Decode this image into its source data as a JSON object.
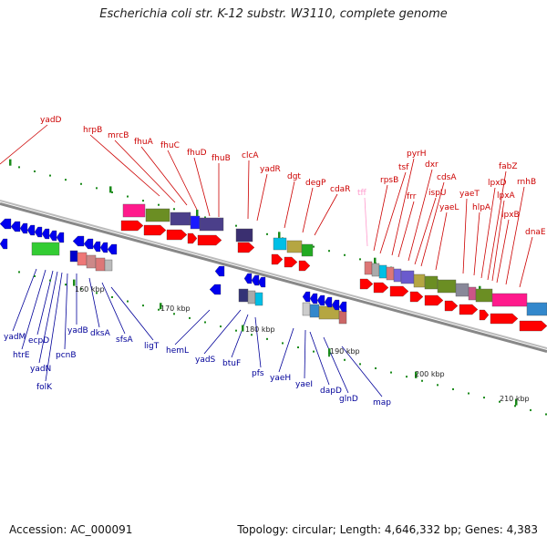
{
  "header": {
    "title": "Escherichia coli str. K-12 substr. W3110, complete genome"
  },
  "footer": {
    "accession": "Accession: AC_000091",
    "topology": "Topology: circular; Length: 4,646,332 bp; Genes: 4,383"
  },
  "scale_labels": [
    "160 kbp",
    "170 kbp",
    "180 kbp",
    "190 kbp",
    "200 kbp",
    "210 kbp"
  ],
  "colors": {
    "top_label": "#cc0000",
    "bottom_label": "#000099",
    "faded_label": "#ff99cc",
    "forward_gene": "#ff0000",
    "reverse_gene": "#0000ee",
    "backbone": "#888888",
    "tick": "#1a8a1a"
  },
  "top_genes": [
    "yadD",
    "hrpB",
    "mrcB",
    "fhuA",
    "fhuC",
    "fhuD",
    "fhuB",
    "clcA",
    "yadR",
    "dgt",
    "degP",
    "cdaR",
    "tff",
    "rpsB",
    "tsf",
    "pyrH",
    "frr",
    "dxr",
    "ispU",
    "cdsA",
    "yaeL",
    "yaeT",
    "hlpA",
    "lpxD",
    "fabZ",
    "lpxA",
    "lpxB",
    "rnhB",
    "dnaE"
  ],
  "bottom_genes": [
    "yadM",
    "htrE",
    "ecpD",
    "yadN",
    "folK",
    "pcnB",
    "yadB",
    "dksA",
    "sfsA",
    "ligT",
    "hemL",
    "yadS",
    "btuF",
    "pfs",
    "yaeH",
    "yaeI",
    "dapD",
    "glnD",
    "map"
  ]
}
